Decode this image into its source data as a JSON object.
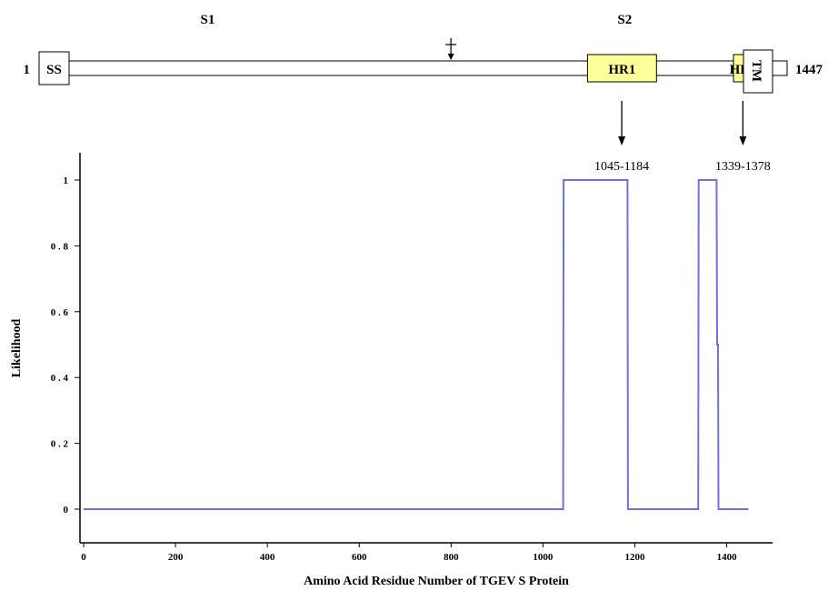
{
  "protein_map": {
    "regions": [
      {
        "label": "S1",
        "center": 280
      },
      {
        "label": "S2",
        "center": 1120
      }
    ],
    "start_label": "1",
    "end_label": "1447",
    "domains": [
      {
        "label": "SS",
        "start": 1,
        "end": 40,
        "color": "#ffffff"
      },
      {
        "label": "HR1",
        "start": 1045,
        "end": 1184,
        "color": "#ffff99"
      },
      {
        "label": "HR2",
        "start": 1339,
        "end": 1378,
        "color": "#ffff99"
      },
      {
        "label": "TM",
        "start": 1395,
        "end": 1430,
        "color": "#ffffff"
      }
    ],
    "cleavage_site": 770,
    "pointers": [
      {
        "label": "1045-1184",
        "position": 1114
      },
      {
        "label": "1339-1378",
        "position": 1358
      }
    ]
  },
  "chart_data": {
    "type": "line",
    "title": "",
    "xlabel": "Amino Acid Residue Number of TGEV S Protein",
    "ylabel": "Likelihood",
    "xlim": [
      0,
      1480
    ],
    "ylim": [
      -0.1,
      1.05
    ],
    "x_ticks": [
      0,
      200,
      400,
      600,
      800,
      1000,
      1200,
      1400
    ],
    "y_ticks": [
      0,
      0.2,
      0.4,
      0.6,
      0.8,
      1
    ],
    "y_tick_labels": [
      "0",
      "0 . 2",
      "0 . 4",
      "0 . 6",
      "0 . 8",
      "1"
    ],
    "grid": false,
    "series": [
      {
        "color": "#7070e0",
        "x": [
          0,
          1044,
          1045,
          1184,
          1185,
          1338,
          1339,
          1378,
          1379,
          1380,
          1381,
          1382,
          1447
        ],
        "y": [
          0,
          0,
          1,
          1,
          0,
          0,
          1,
          1,
          0.5,
          0.5,
          0.5,
          0,
          0
        ]
      }
    ]
  }
}
